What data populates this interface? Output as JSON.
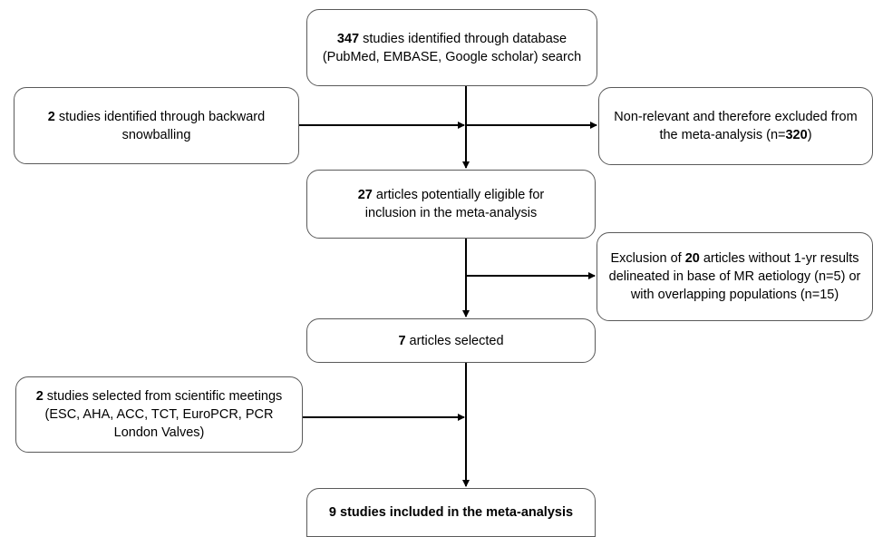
{
  "boxes": {
    "database": {
      "count": "347",
      "text": " studies identified through database (PubMed, EMBASE, Google scholar) search"
    },
    "snowballing": {
      "count": "2",
      "text": " studies identified through backward snowballing"
    },
    "excluded_nonrelevant": {
      "text_before": "Non-relevant  and therefore excluded from the meta-analysis (n=",
      "count": "320",
      "text_after": ")"
    },
    "eligible": {
      "count": "27",
      "text": " articles potentially eligible for inclusion in the meta-analysis"
    },
    "excluded_articles": {
      "text_before": "Exclusion of ",
      "count": "20",
      "text_after": " articles without 1-yr results delineated in base of MR aetiology (n=5) or with overlapping populations (n=15)"
    },
    "selected": {
      "count": "7",
      "text": " articles selected"
    },
    "meetings": {
      "count": "2",
      "text": " studies selected from scientific meetings (ESC, AHA, ACC, TCT, EuroPCR, PCR London Valves)"
    },
    "included": {
      "text": "9 studies included in the meta-analysis"
    }
  },
  "colors": {
    "border": "#5a5a5a",
    "arrow": "#000000",
    "background": "#ffffff"
  }
}
